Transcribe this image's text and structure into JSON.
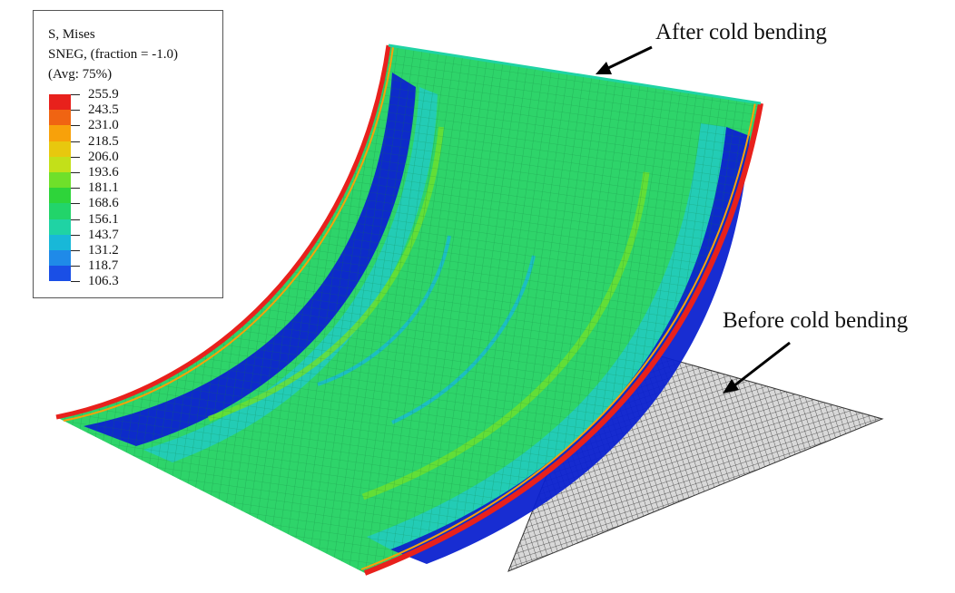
{
  "legend": {
    "title_line1": "S, Mises",
    "title_line2": "SNEG, (fraction = -1.0)",
    "title_line3": "(Avg: 75%)",
    "values": [
      "255.9",
      "243.5",
      "231.0",
      "218.5",
      "206.0",
      "193.6",
      "181.1",
      "168.6",
      "156.1",
      "143.7",
      "131.2",
      "118.7",
      "106.3"
    ],
    "colors": [
      "#e8211c",
      "#f06412",
      "#f8a10a",
      "#e8c80e",
      "#c3e019",
      "#6fe02a",
      "#2ed43a",
      "#22d46a",
      "#1fd3a4",
      "#18b8d8",
      "#1f8ae8",
      "#1a4fe6",
      "#0c19cf"
    ]
  },
  "annotations": {
    "after": "After cold bending",
    "before": "Before cold bending"
  },
  "colors": {
    "plate_green": "#2ed46a",
    "band_blue": "#0c22d0",
    "edge_red": "#e8211c",
    "mesh_gray": "#707070"
  }
}
